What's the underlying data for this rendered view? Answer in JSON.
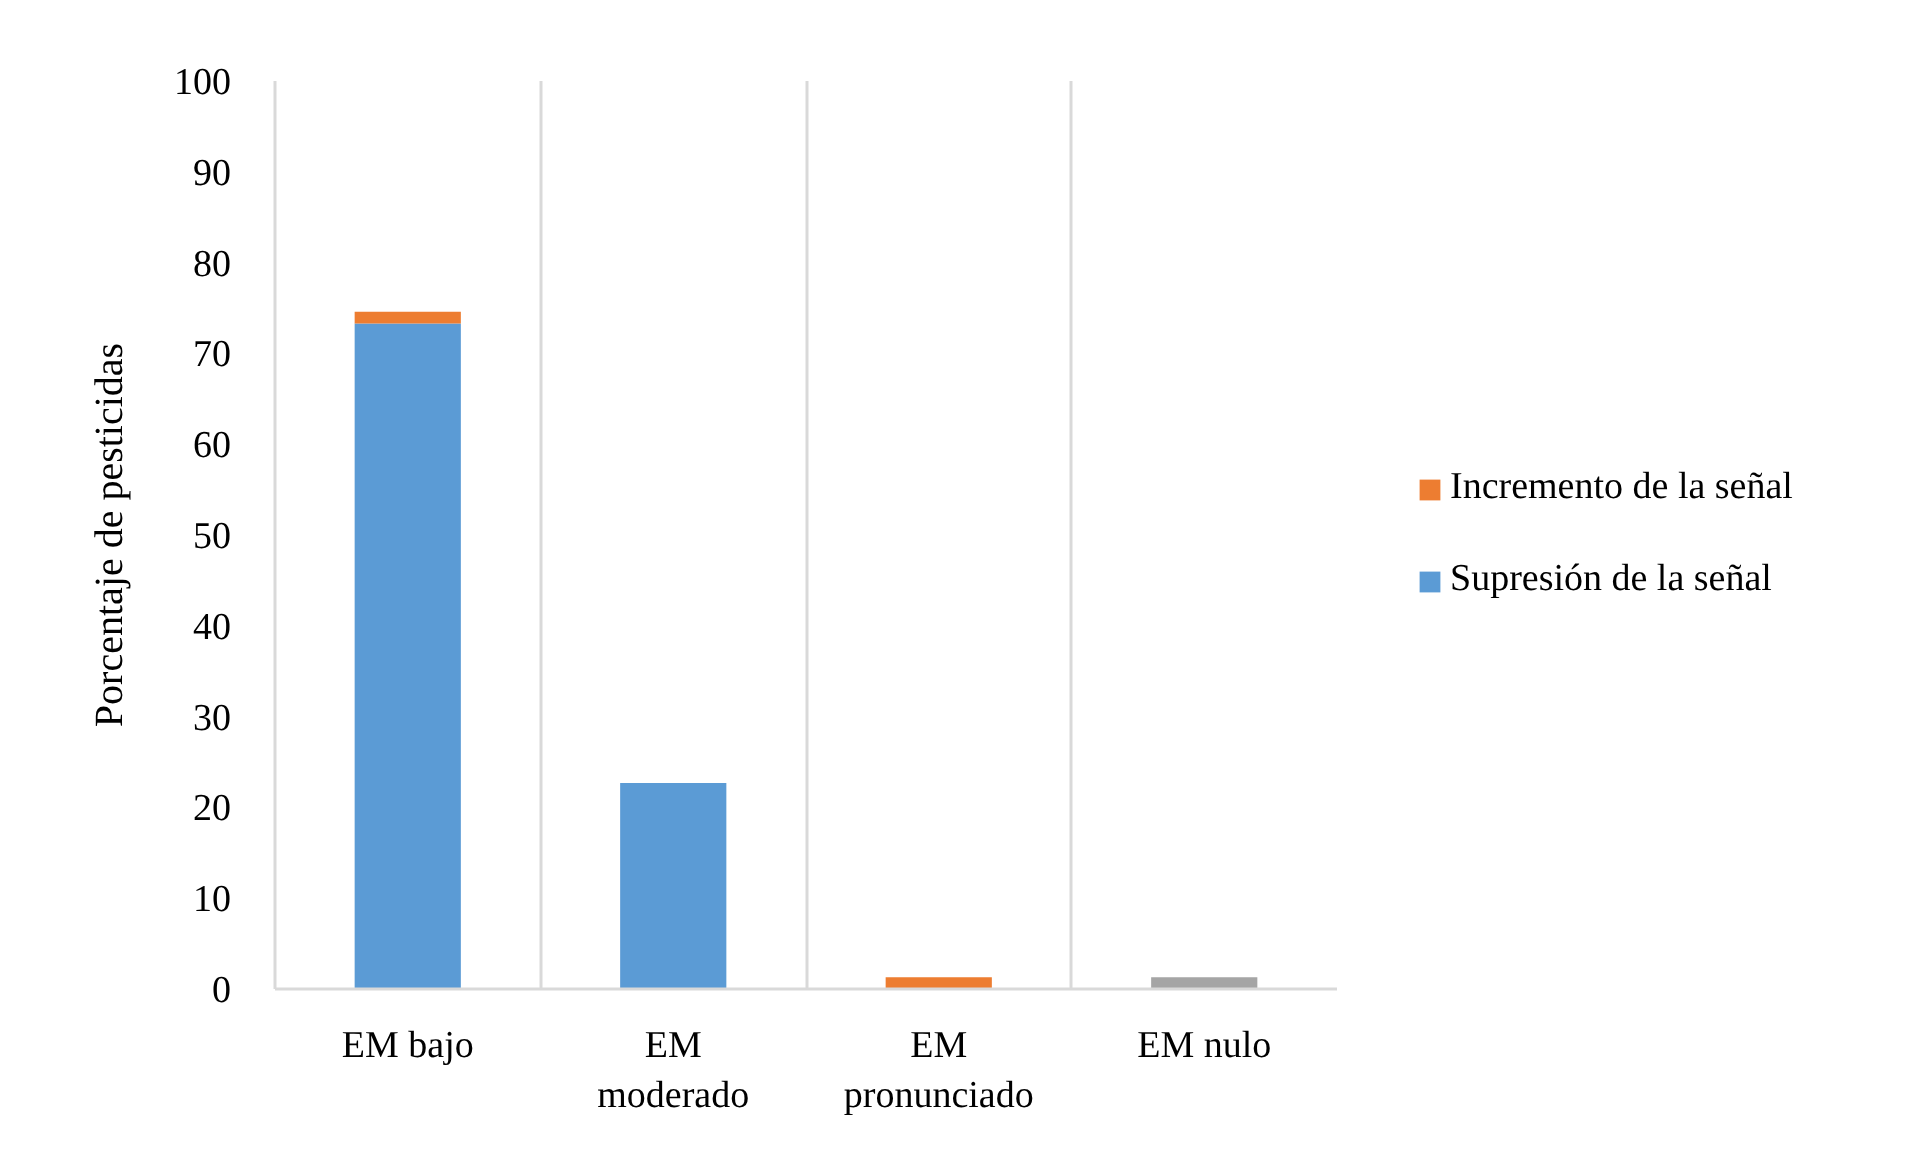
{
  "chart_data": {
    "type": "bar",
    "stacked": true,
    "categories": [
      "EM bajo",
      "EM moderado",
      "EM pronunciado",
      "EM nulo"
    ],
    "series": [
      {
        "name": "Supresión de la señal",
        "color": "#5b9bd5",
        "values": [
          73.3,
          22.7,
          null,
          null
        ]
      },
      {
        "name": "Incremento de la señal",
        "color": "#ed7d31",
        "values": [
          1.3,
          null,
          1.3,
          null
        ]
      },
      {
        "color": "#a5a5a5",
        "values": [
          null,
          null,
          null,
          1.3
        ]
      }
    ],
    "ylabel": "Porcentaje de pesticidas",
    "ylim": [
      0,
      100
    ],
    "yticks": [
      0,
      10,
      20,
      30,
      40,
      50,
      60,
      70,
      80,
      90,
      100
    ],
    "grid": "x",
    "legend": "right"
  }
}
